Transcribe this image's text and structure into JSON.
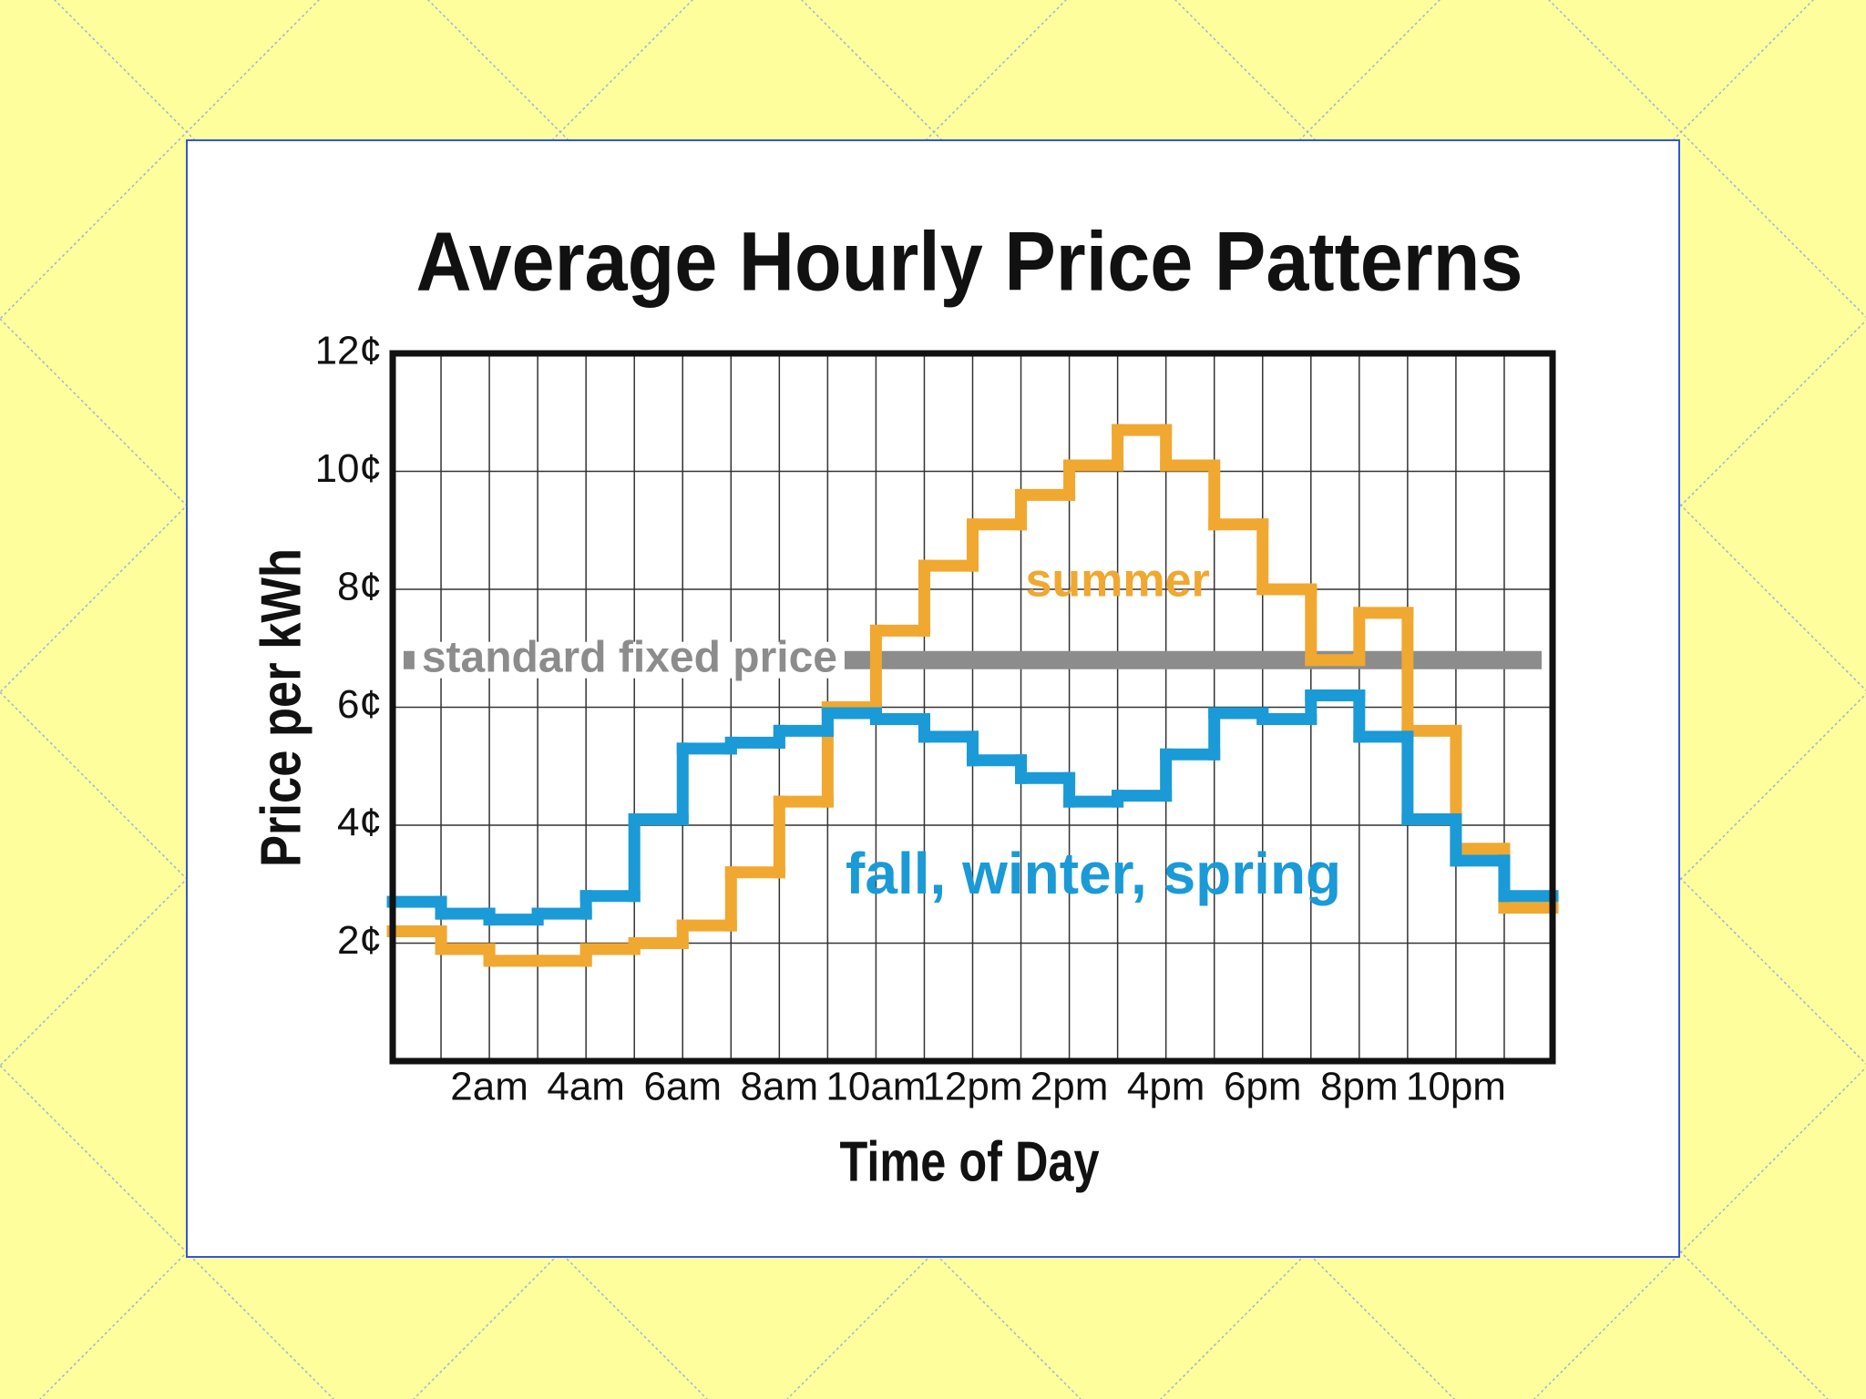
{
  "chart_data": {
    "type": "step",
    "title": "Average Hourly Price Patterns",
    "x_label": "Time of Day",
    "y_label": "Price per kWh",
    "x": [
      0,
      1,
      2,
      3,
      4,
      5,
      6,
      7,
      8,
      9,
      10,
      11,
      12,
      13,
      14,
      15,
      16,
      17,
      18,
      19,
      20,
      21,
      22,
      23
    ],
    "step": "post",
    "series": [
      {
        "name": "summer",
        "color": "#f0a830",
        "values": [
          2.2,
          1.9,
          1.7,
          1.7,
          1.9,
          2.0,
          2.3,
          3.2,
          4.4,
          6.0,
          7.3,
          8.4,
          9.1,
          9.6,
          10.1,
          10.7,
          10.1,
          9.1,
          8.0,
          6.8,
          7.6,
          5.6,
          3.6,
          2.6
        ]
      },
      {
        "name": "fall, winter, spring",
        "color": "#1a9ad6",
        "values": [
          2.7,
          2.5,
          2.4,
          2.5,
          2.8,
          4.1,
          5.3,
          5.4,
          5.6,
          5.9,
          5.8,
          5.5,
          5.1,
          4.8,
          4.4,
          4.5,
          5.2,
          5.9,
          5.8,
          6.2,
          5.5,
          4.1,
          3.4,
          2.8
        ]
      }
    ],
    "reference_lines": [
      {
        "name": "standard fixed price",
        "value": 6.8,
        "color": "#8c8c8c"
      }
    ],
    "xlim": [
      0,
      24
    ],
    "xticks": [
      {
        "value": 2,
        "label": "2am"
      },
      {
        "value": 4,
        "label": "4am"
      },
      {
        "value": 6,
        "label": "6am"
      },
      {
        "value": 8,
        "label": "8am"
      },
      {
        "value": 10,
        "label": "10am"
      },
      {
        "value": 12,
        "label": "12pm"
      },
      {
        "value": 14,
        "label": "2pm"
      },
      {
        "value": 16,
        "label": "4pm"
      },
      {
        "value": 18,
        "label": "6pm"
      },
      {
        "value": 20,
        "label": "8pm"
      },
      {
        "value": 22,
        "label": "10pm"
      }
    ],
    "x_minor_ticks": [
      1,
      3,
      5,
      7,
      9,
      11,
      13,
      15,
      17,
      19,
      21,
      23
    ],
    "ylim": [
      0,
      12
    ],
    "yticks": [
      {
        "value": 2,
        "label": "2¢"
      },
      {
        "value": 4,
        "label": "4¢"
      },
      {
        "value": 6,
        "label": "6¢"
      },
      {
        "value": 8,
        "label": "8¢"
      },
      {
        "value": 10,
        "label": "10¢"
      },
      {
        "value": 12,
        "label": "12¢"
      }
    ],
    "grid": true
  }
}
